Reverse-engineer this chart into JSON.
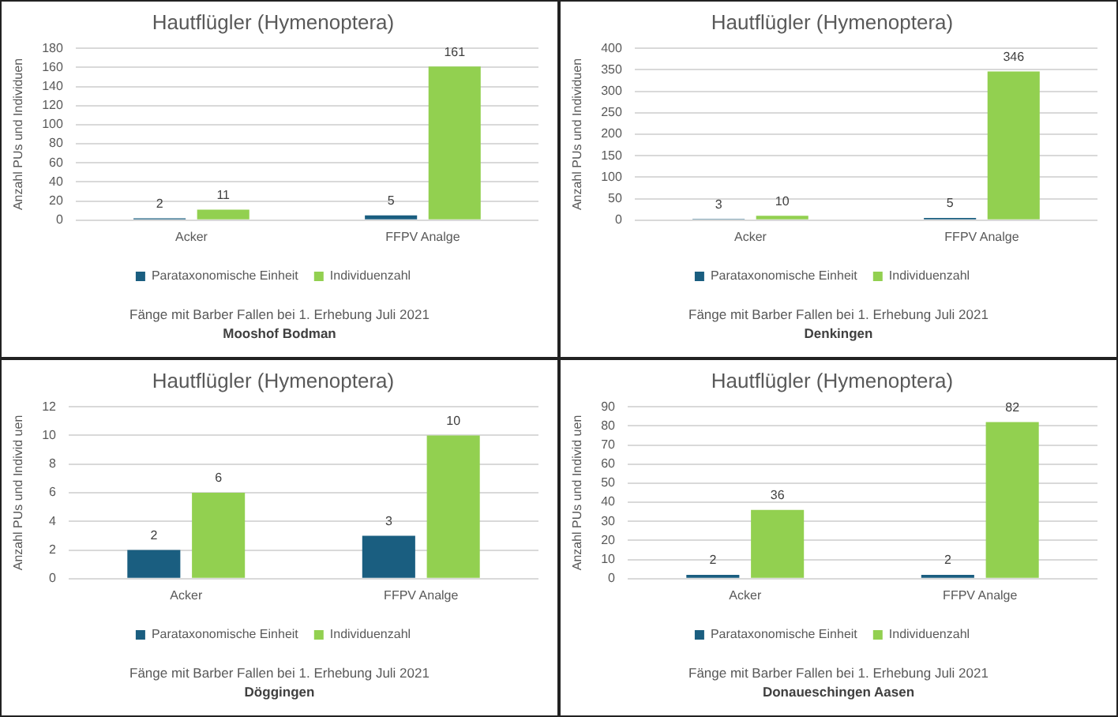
{
  "chart_data": [
    {
      "type": "bar",
      "title": "Hautflügler (Hymenoptera)",
      "ylabel": "Anzahl PUs und Individuen",
      "categories": [
        "Acker",
        "FFPV Analge"
      ],
      "series": [
        {
          "name": "Parataxonomische Einheit",
          "color": "#1a5e80",
          "values": [
            2,
            5
          ]
        },
        {
          "name": "Individuenzahl",
          "color": "#92d050",
          "values": [
            11,
            161
          ]
        }
      ],
      "ylim": [
        0,
        180
      ],
      "yticks": [
        0,
        20,
        40,
        60,
        80,
        100,
        120,
        140,
        160,
        180
      ],
      "grid": "y",
      "legend": "bottom",
      "data_labels": true,
      "annotations": [
        "Fänge mit Barber Fallen bei 1. Erhebung Juli 2021",
        "Mooshof Bodman"
      ]
    },
    {
      "type": "bar",
      "title": "Hautflügler (Hymenoptera)",
      "ylabel": "Anzahl PUs und Individuen",
      "categories": [
        "Acker",
        "FFPV Analge"
      ],
      "series": [
        {
          "name": "Parataxonomische Einheit",
          "color": "#1a5e80",
          "values": [
            3,
            5
          ]
        },
        {
          "name": "Individuenzahl",
          "color": "#92d050",
          "values": [
            10,
            346
          ]
        }
      ],
      "ylim": [
        0,
        400
      ],
      "yticks": [
        0,
        50,
        100,
        150,
        200,
        250,
        300,
        350,
        400
      ],
      "grid": "y",
      "legend": "bottom",
      "data_labels": true,
      "annotations": [
        "Fänge mit Barber Fallen bei 1. Erhebung Juli 2021",
        "Denkingen"
      ]
    },
    {
      "type": "bar",
      "title": "Hautflügler (Hymenoptera)",
      "ylabel": "Anzahl PUs und Individ uen",
      "categories": [
        "Acker",
        "FFPV Analge"
      ],
      "series": [
        {
          "name": "Parataxonomische Einheit",
          "color": "#1a5e80",
          "values": [
            2,
            3
          ]
        },
        {
          "name": "Individuenzahl",
          "color": "#92d050",
          "values": [
            6,
            10
          ]
        }
      ],
      "ylim": [
        0,
        12
      ],
      "yticks": [
        0,
        2,
        4,
        6,
        8,
        10,
        12
      ],
      "grid": "y",
      "legend": "bottom",
      "data_labels": true,
      "annotations": [
        "Fänge mit Barber Fallen bei 1. Erhebung Juli 2021",
        "Döggingen"
      ]
    },
    {
      "type": "bar",
      "title": "Hautflügler (Hymenoptera)",
      "ylabel": "Anzahl PUs und Individ uen",
      "categories": [
        "Acker",
        "FFPV Analge"
      ],
      "series": [
        {
          "name": "Parataxonomische Einheit",
          "color": "#1a5e80",
          "values": [
            2,
            2
          ]
        },
        {
          "name": "Individuenzahl",
          "color": "#92d050",
          "values": [
            36,
            82
          ]
        }
      ],
      "ylim": [
        0,
        90
      ],
      "yticks": [
        0,
        10,
        20,
        30,
        40,
        50,
        60,
        70,
        80,
        90
      ],
      "grid": "y",
      "legend": "bottom",
      "data_labels": true,
      "annotations": [
        "Fänge mit Barber Fallen bei 1. Erhebung Juli 2021",
        "Donaueschingen Aasen"
      ]
    }
  ]
}
